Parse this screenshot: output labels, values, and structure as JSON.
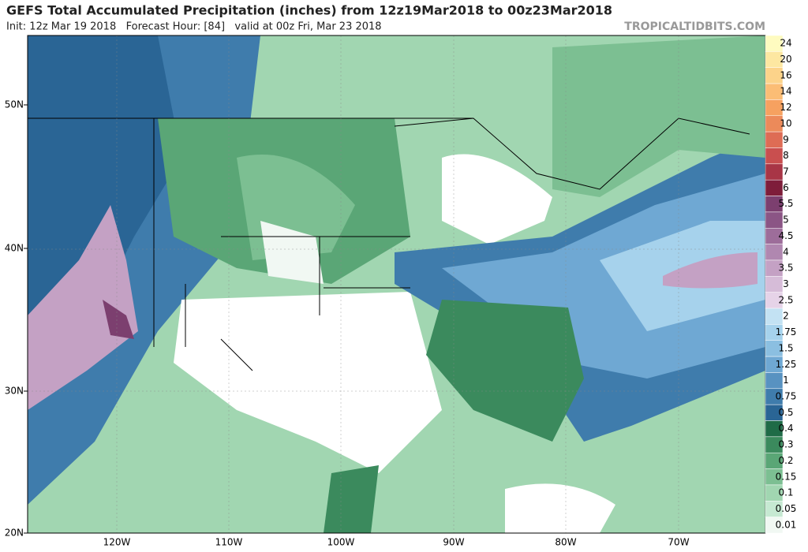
{
  "header": {
    "title": "GEFS Total Accumulated Precipitation (inches) from 12z19Mar2018 to 00z23Mar2018",
    "subtitle": "Init: 12z Mar 19 2018   Forecast Hour: [84]   valid at 00z Fri, Mar 23 2018",
    "source": "TROPICALTIDBITS.COM"
  },
  "map": {
    "lat_labels": [
      "50N",
      "40N",
      "30N",
      "20N"
    ],
    "lon_labels": [
      "120W",
      "110W",
      "100W",
      "90W",
      "80W",
      "70W"
    ]
  },
  "legend": {
    "levels": [
      {
        "value": 24,
        "color": "#fefbc0"
      },
      {
        "value": 20,
        "color": "#fde7a1"
      },
      {
        "value": 16,
        "color": "#fcd38a"
      },
      {
        "value": 14,
        "color": "#fbbd75"
      },
      {
        "value": 12,
        "color": "#f6a160"
      },
      {
        "value": 10,
        "color": "#ec8a5a"
      },
      {
        "value": 9,
        "color": "#de6c55"
      },
      {
        "value": 8,
        "color": "#c94f4f"
      },
      {
        "value": 7,
        "color": "#a83546"
      },
      {
        "value": 6,
        "color": "#7e1d3a"
      },
      {
        "value": 5.5,
        "color": "#7c3f6f"
      },
      {
        "value": 5,
        "color": "#8b5585"
      },
      {
        "value": 4.5,
        "color": "#9d6d9a"
      },
      {
        "value": 4,
        "color": "#b087b0"
      },
      {
        "value": 3.5,
        "color": "#c4a1c4"
      },
      {
        "value": 3,
        "color": "#d6bcd8"
      },
      {
        "value": 2.5,
        "color": "#e6d3e8"
      },
      {
        "value": 2,
        "color": "#c3e2f3"
      },
      {
        "value": 1.75,
        "color": "#a6d2ec"
      },
      {
        "value": 1.5,
        "color": "#8bbfe1"
      },
      {
        "value": 1.25,
        "color": "#6fa8d3"
      },
      {
        "value": 1,
        "color": "#5892c1"
      },
      {
        "value": 0.75,
        "color": "#3f7cac"
      },
      {
        "value": 0.5,
        "color": "#2a6595"
      },
      {
        "value": 0.4,
        "color": "#1f6b47"
      },
      {
        "value": 0.3,
        "color": "#3b8a5d"
      },
      {
        "value": 0.2,
        "color": "#5aa676"
      },
      {
        "value": 0.15,
        "color": "#7cbf92"
      },
      {
        "value": 0.1,
        "color": "#a1d6b1"
      },
      {
        "value": 0.05,
        "color": "#c6e9d2"
      },
      {
        "value": 0.01,
        "color": "#f1f8f3"
      }
    ]
  }
}
